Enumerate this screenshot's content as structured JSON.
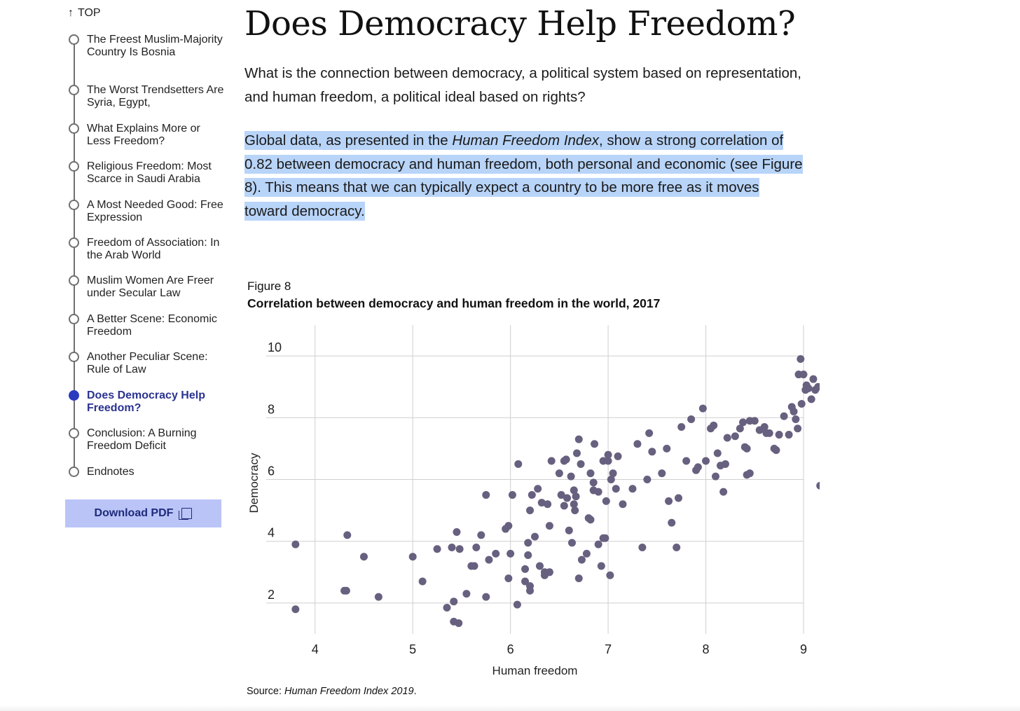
{
  "toc": {
    "top_label": "TOP",
    "items": [
      {
        "label": "The Freest Muslim-Majority Country Is Bosnia",
        "active": false
      },
      {
        "label": "The Worst Trendsetters Are Syria, Egypt,",
        "active": false
      },
      {
        "label": "What Explains More or Less Freedom?",
        "active": false
      },
      {
        "label": "Religious Freedom: Most Scarce in Saudi Arabia",
        "active": false
      },
      {
        "label": "A Most Needed Good: Free Expression",
        "active": false
      },
      {
        "label": "Freedom of Association: In the Arab World",
        "active": false
      },
      {
        "label": "Muslim Women Are Freer under Secular Law",
        "active": false
      },
      {
        "label": "A Better Scene: Economic Freedom",
        "active": false
      },
      {
        "label": "Another Peculiar Scene: Rule of Law",
        "active": false
      },
      {
        "label": "Does Democracy Help Freedom?",
        "active": true
      },
      {
        "label": "Conclusion: A Burning Freedom Deficit",
        "active": false
      },
      {
        "label": "Endnotes",
        "active": false
      }
    ],
    "download_label": "Download PDF",
    "download_icon": "pdf-icon"
  },
  "article": {
    "title": "Does Democracy Help Freedom?",
    "intro": "What is the connection between democracy, a political system based on representation, and human freedom, a political ideal based on rights?",
    "highlight_pre": "Global data, as presented in the ",
    "highlight_italic": "Human Freedom Index",
    "highlight_post": ", show a strong correlation of 0.82 between democracy and human freedom, both personal and economic (see Figure 8). This means that we can typically expect a country to be more free as it moves toward democracy."
  },
  "figure": {
    "label": "Figure 8",
    "title": "Correlation between democracy and human freedom in the world, 2017",
    "source_prefix": "Source: ",
    "source_italic": "Human Freedom Index 2019",
    "source_suffix": "."
  },
  "colors": {
    "accent": "#2a3bbf",
    "highlight": "#b8d4f8",
    "download_bg": "#bac4f7",
    "dot": "#67607f"
  },
  "chart_data": {
    "type": "scatter",
    "title": "Correlation between democracy and human freedom in the world, 2017",
    "xlabel": "Human freedom",
    "ylabel": "Democracy",
    "xlim": [
      3.5,
      9
    ],
    "ylim": [
      1,
      11
    ],
    "xticks": [
      4,
      5,
      6,
      7,
      8,
      9
    ],
    "yticks": [
      2,
      4,
      6,
      8,
      10
    ],
    "grid": true,
    "points": [
      [
        3.8,
        3.9
      ],
      [
        3.8,
        1.8
      ],
      [
        4.3,
        2.4
      ],
      [
        4.32,
        2.4
      ],
      [
        4.33,
        4.2
      ],
      [
        4.5,
        3.5
      ],
      [
        4.65,
        2.2
      ],
      [
        5.0,
        3.5
      ],
      [
        5.1,
        2.7
      ],
      [
        5.25,
        3.75
      ],
      [
        5.35,
        1.85
      ],
      [
        5.4,
        3.8
      ],
      [
        5.42,
        2.05
      ],
      [
        5.45,
        4.3
      ],
      [
        5.48,
        3.75
      ],
      [
        5.42,
        1.4
      ],
      [
        5.47,
        1.35
      ],
      [
        5.55,
        2.3
      ],
      [
        5.6,
        3.2
      ],
      [
        5.63,
        3.2
      ],
      [
        5.65,
        3.8
      ],
      [
        5.7,
        4.2
      ],
      [
        5.75,
        5.5
      ],
      [
        5.75,
        2.2
      ],
      [
        5.78,
        3.4
      ],
      [
        5.85,
        3.6
      ],
      [
        5.95,
        4.4
      ],
      [
        5.98,
        4.5
      ],
      [
        6.0,
        3.6
      ],
      [
        5.98,
        2.8
      ],
      [
        6.02,
        5.5
      ],
      [
        6.08,
        6.5
      ],
      [
        6.07,
        1.95
      ],
      [
        6.15,
        3.1
      ],
      [
        6.15,
        2.7
      ],
      [
        6.18,
        3.55
      ],
      [
        6.18,
        3.95
      ],
      [
        6.2,
        2.4
      ],
      [
        6.2,
        2.55
      ],
      [
        6.2,
        5.0
      ],
      [
        6.22,
        5.5
      ],
      [
        6.25,
        4.15
      ],
      [
        6.28,
        5.7
      ],
      [
        6.3,
        3.2
      ],
      [
        6.32,
        5.25
      ],
      [
        6.35,
        3.0
      ],
      [
        6.35,
        2.9
      ],
      [
        6.38,
        5.2
      ],
      [
        6.4,
        4.5
      ],
      [
        6.4,
        3.0
      ],
      [
        6.42,
        6.6
      ],
      [
        6.5,
        6.2
      ],
      [
        6.52,
        5.5
      ],
      [
        6.55,
        6.6
      ],
      [
        6.55,
        5.15
      ],
      [
        6.57,
        6.65
      ],
      [
        6.58,
        5.4
      ],
      [
        6.6,
        4.35
      ],
      [
        6.62,
        6.1
      ],
      [
        6.63,
        3.95
      ],
      [
        6.65,
        5.65
      ],
      [
        6.65,
        5.2
      ],
      [
        6.66,
        5.0
      ],
      [
        6.67,
        5.45
      ],
      [
        6.68,
        6.85
      ],
      [
        6.7,
        2.8
      ],
      [
        6.7,
        7.3
      ],
      [
        6.72,
        6.5
      ],
      [
        6.73,
        3.4
      ],
      [
        6.78,
        3.6
      ],
      [
        6.8,
        4.75
      ],
      [
        6.82,
        4.7
      ],
      [
        6.82,
        6.2
      ],
      [
        6.85,
        5.9
      ],
      [
        6.85,
        5.65
      ],
      [
        6.86,
        7.15
      ],
      [
        6.9,
        5.6
      ],
      [
        6.9,
        3.9
      ],
      [
        6.93,
        3.2
      ],
      [
        6.95,
        6.6
      ],
      [
        6.95,
        4.1
      ],
      [
        6.97,
        4.1
      ],
      [
        6.98,
        5.3
      ],
      [
        7.0,
        6.8
      ],
      [
        7.0,
        6.6
      ],
      [
        7.02,
        2.9
      ],
      [
        7.03,
        6.0
      ],
      [
        7.05,
        6.2
      ],
      [
        7.08,
        5.7
      ],
      [
        7.1,
        6.75
      ],
      [
        7.15,
        5.2
      ],
      [
        7.25,
        5.7
      ],
      [
        7.3,
        7.15
      ],
      [
        7.35,
        3.8
      ],
      [
        7.4,
        6.0
      ],
      [
        7.42,
        7.5
      ],
      [
        7.45,
        6.9
      ],
      [
        7.55,
        6.2
      ],
      [
        7.6,
        7.0
      ],
      [
        7.62,
        5.3
      ],
      [
        7.65,
        4.6
      ],
      [
        7.7,
        3.8
      ],
      [
        7.72,
        5.4
      ],
      [
        7.75,
        7.7
      ],
      [
        7.8,
        6.6
      ],
      [
        7.85,
        7.95
      ],
      [
        7.9,
        6.3
      ],
      [
        7.92,
        6.4
      ],
      [
        7.97,
        8.3
      ],
      [
        8.0,
        6.6
      ],
      [
        8.05,
        7.65
      ],
      [
        8.08,
        7.75
      ],
      [
        8.1,
        6.1
      ],
      [
        8.12,
        6.85
      ],
      [
        8.15,
        6.45
      ],
      [
        8.18,
        5.6
      ],
      [
        8.2,
        6.5
      ],
      [
        8.22,
        7.35
      ],
      [
        8.3,
        7.4
      ],
      [
        8.35,
        7.65
      ],
      [
        8.38,
        7.85
      ],
      [
        8.4,
        7.05
      ],
      [
        8.42,
        7.0
      ],
      [
        8.42,
        6.15
      ],
      [
        8.45,
        6.2
      ],
      [
        8.45,
        7.9
      ],
      [
        8.5,
        7.9
      ],
      [
        8.55,
        7.6
      ],
      [
        8.6,
        7.7
      ],
      [
        8.62,
        7.5
      ],
      [
        8.65,
        7.5
      ],
      [
        8.7,
        7.0
      ],
      [
        8.72,
        6.95
      ],
      [
        8.75,
        7.45
      ],
      [
        8.8,
        8.05
      ],
      [
        8.85,
        7.45
      ],
      [
        8.88,
        8.35
      ],
      [
        8.9,
        8.2
      ],
      [
        8.92,
        7.95
      ],
      [
        8.94,
        7.65
      ],
      [
        8.95,
        9.4
      ],
      [
        8.97,
        9.9
      ],
      [
        8.98,
        8.45
      ],
      [
        9.0,
        9.4
      ],
      [
        9.02,
        8.9
      ],
      [
        9.03,
        9.05
      ],
      [
        9.05,
        8.95
      ],
      [
        9.08,
        8.6
      ],
      [
        9.1,
        9.25
      ],
      [
        9.12,
        8.9
      ],
      [
        9.15,
        9.0
      ],
      [
        9.17,
        5.8
      ],
      [
        9.2,
        9.05
      ],
      [
        9.25,
        9.1
      ]
    ]
  }
}
